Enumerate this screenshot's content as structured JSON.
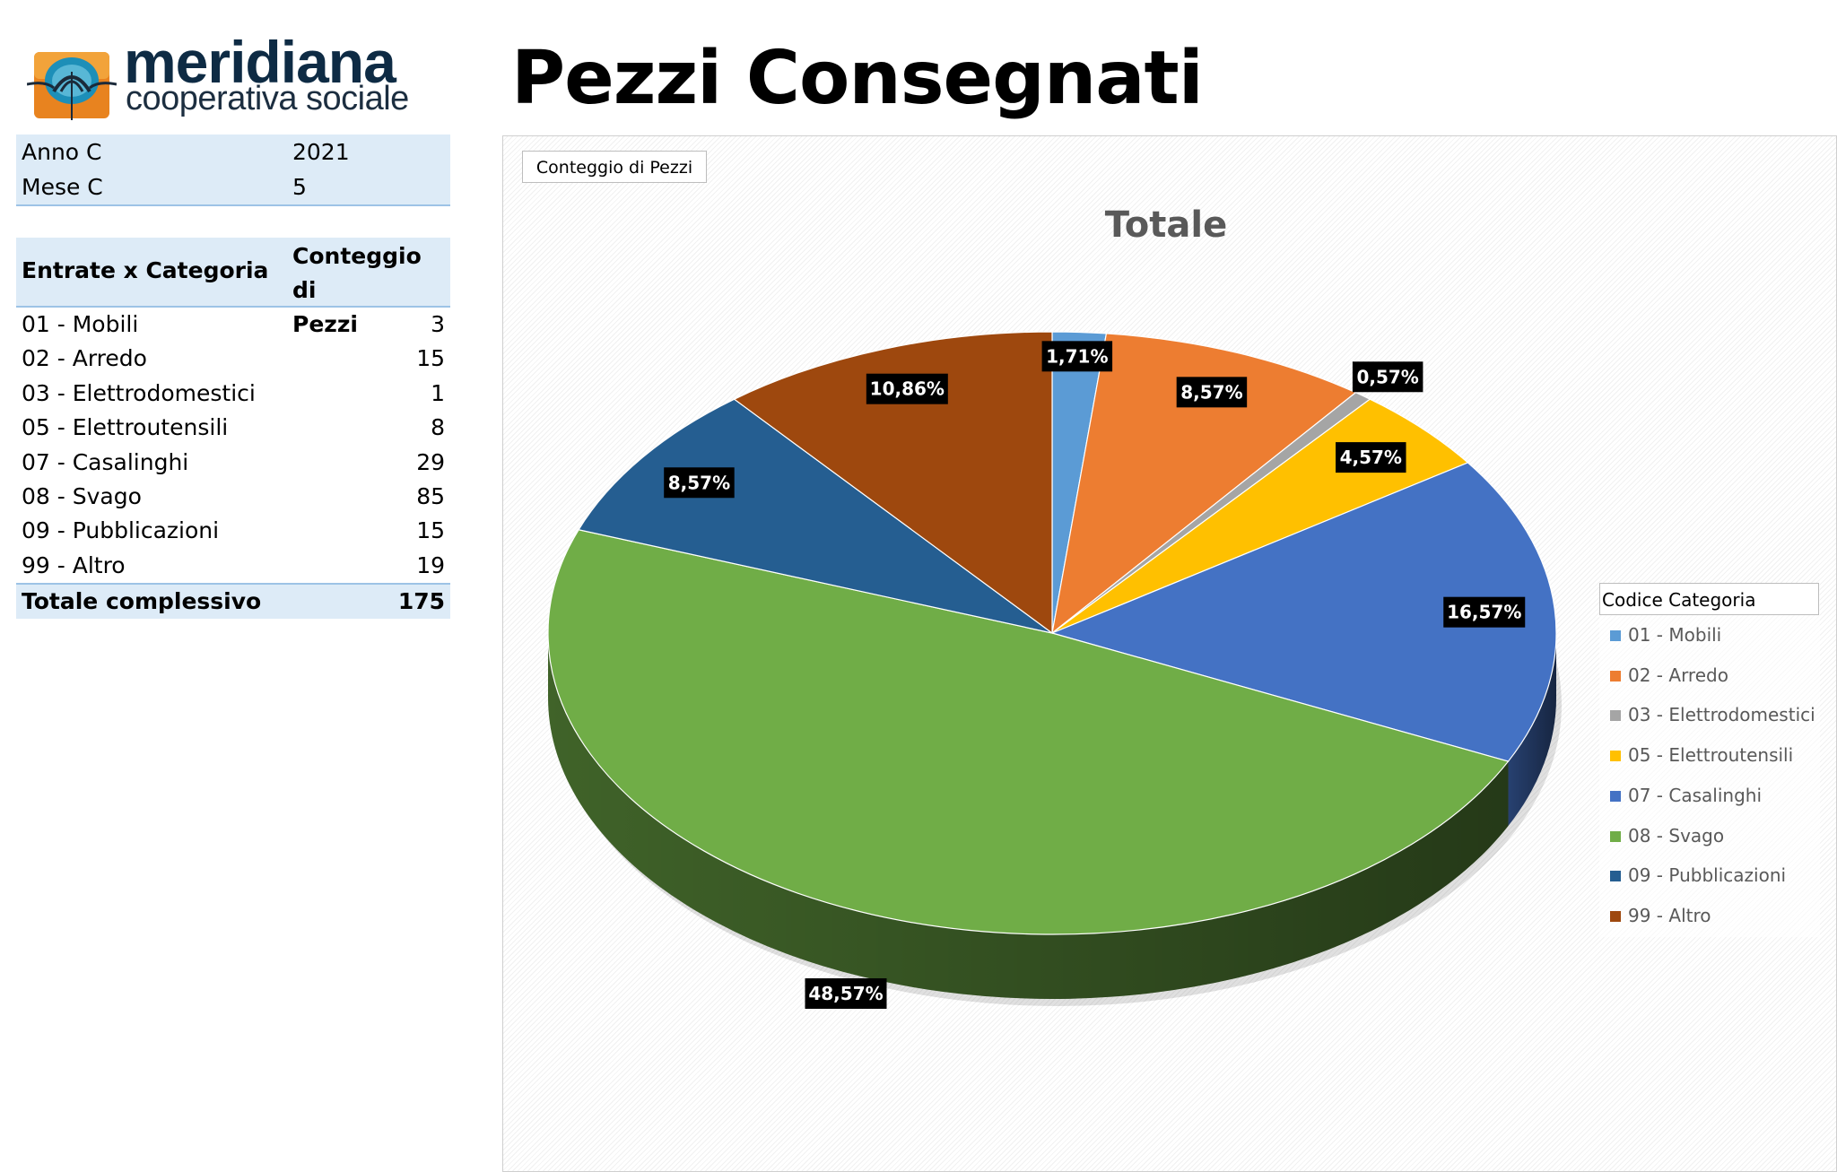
{
  "logo": {
    "name": "meridiana",
    "subtitle": "cooperativa sociale"
  },
  "page_title": "Pezzi Consegnati",
  "filters": [
    {
      "key": "Anno C",
      "value": "2021"
    },
    {
      "key": "Mese C",
      "value": "5"
    }
  ],
  "pivot": {
    "header_category": "Entrate x Categoria",
    "header_count_line1": "Conteggio di",
    "header_count_line2": "Pezzi",
    "rows": [
      {
        "cat": "01 - Mobili",
        "count": "3"
      },
      {
        "cat": "02 - Arredo",
        "count": "15"
      },
      {
        "cat": "03 - Elettrodomestici",
        "count": "1"
      },
      {
        "cat": "05 - Elettroutensili",
        "count": "8"
      },
      {
        "cat": "07 - Casalinghi",
        "count": "29"
      },
      {
        "cat": "08 - Svago",
        "count": "85"
      },
      {
        "cat": "09 - Pubblicazioni",
        "count": "15"
      },
      {
        "cat": "99 - Altro",
        "count": "19"
      }
    ],
    "total_label": "Totale complessivo",
    "total_value": "175"
  },
  "chart_data": {
    "type": "pie",
    "field_button": "Conteggio di Pezzi",
    "title": "Totale",
    "legend_title": "Codice Categoria",
    "legend_position": "right",
    "categories": [
      "01 - Mobili",
      "02 - Arredo",
      "03 - Elettrodomestici",
      "05 - Elettroutensili",
      "07 - Casalinghi",
      "08 - Svago",
      "09 - Pubblicazioni",
      "99 - Altro"
    ],
    "values": [
      3,
      15,
      1,
      8,
      29,
      85,
      15,
      19
    ],
    "labels": [
      "1,71%",
      "8,57%",
      "0,57%",
      "4,57%",
      "16,57%",
      "48,57%",
      "8,57%",
      "10,86%"
    ],
    "colors": [
      "#5b9bd5",
      "#ed7d31",
      "#a5a5a5",
      "#ffc000",
      "#4472c4",
      "#70ad47",
      "#255e91",
      "#9e480e"
    ]
  }
}
